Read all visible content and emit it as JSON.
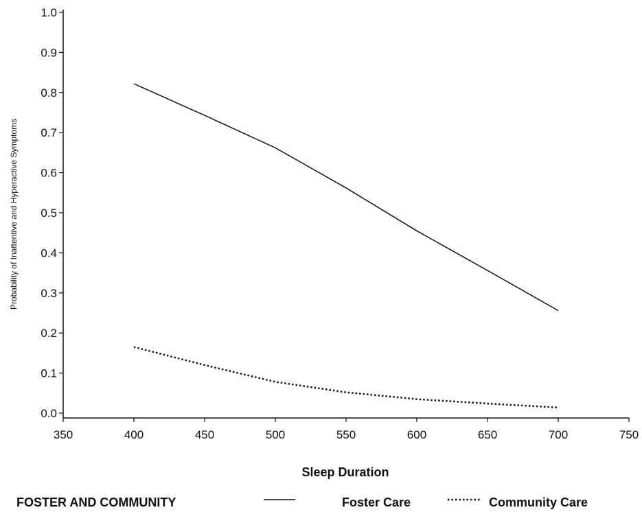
{
  "chart_data": {
    "type": "line",
    "title": "",
    "xlabel": "Sleep Duration",
    "ylabel": "Probability of Inattentive and Hyperactive Symptoms",
    "xlim": [
      350,
      750
    ],
    "ylim": [
      0.0,
      1.0
    ],
    "x_ticks": [
      350,
      400,
      450,
      500,
      550,
      600,
      650,
      700,
      750
    ],
    "x_tick_labels": [
      "350",
      "400",
      "450",
      "500",
      "550",
      "600",
      "650",
      "700",
      "750"
    ],
    "y_ticks": [
      0.0,
      0.1,
      0.2,
      0.3,
      0.4,
      0.5,
      0.6,
      0.7,
      0.8,
      0.9,
      1.0
    ],
    "y_tick_labels": [
      "0.0",
      "0.1",
      "0.2",
      "0.3",
      "0.4",
      "0.5",
      "0.6",
      "0.7",
      "0.8",
      "0.9",
      "1.0"
    ],
    "grid": false,
    "legend": {
      "title": "FOSTER AND COMMUNITY",
      "position": "bottom"
    },
    "series": [
      {
        "name": "Foster Care",
        "style": "solid",
        "color": "#111111",
        "x": [
          400,
          450,
          500,
          550,
          600,
          650,
          700
        ],
        "y": [
          0.822,
          0.743,
          0.662,
          0.562,
          0.455,
          0.356,
          0.256
        ]
      },
      {
        "name": "Community Care",
        "style": "dotted",
        "color": "#111111",
        "x": [
          400,
          450,
          500,
          550,
          600,
          650,
          700
        ],
        "y": [
          0.165,
          0.12,
          0.078,
          0.052,
          0.035,
          0.024,
          0.014
        ]
      }
    ]
  }
}
